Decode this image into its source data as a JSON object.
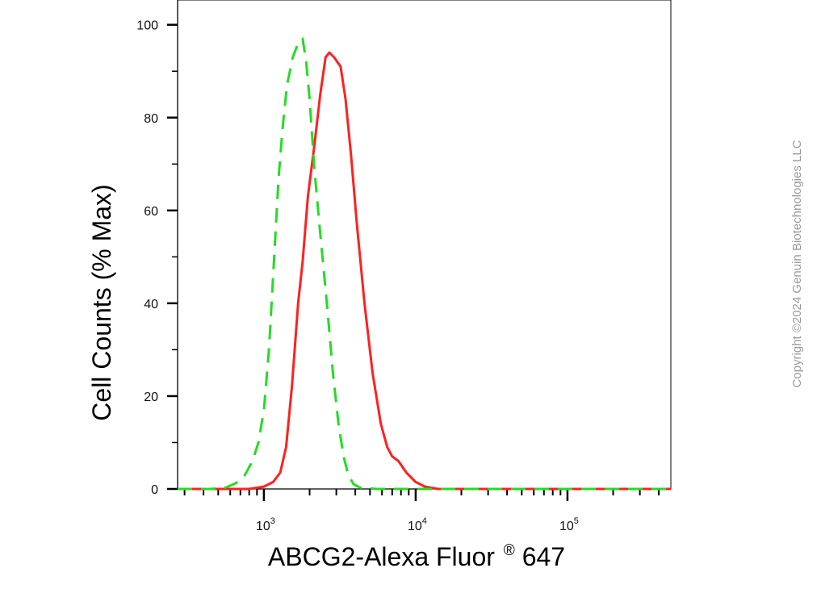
{
  "chart_data": {
    "type": "line",
    "title": "",
    "xlabel": "ABCG2-Alexa Fluor",
    "xlabel_superscript": "®",
    "xlabel_suffix": " 647",
    "ylabel": "Cell Counts (% Max)",
    "x_scale": "log",
    "xlim": [
      270,
      480000
    ],
    "ylim": [
      0,
      105
    ],
    "yticks": [
      0,
      20,
      40,
      60,
      80,
      100
    ],
    "xticks": [
      {
        "value": 1000,
        "base": "10",
        "exp": "3"
      },
      {
        "value": 10000,
        "base": "10",
        "exp": "4"
      },
      {
        "value": 100000,
        "base": "10",
        "exp": "5"
      }
    ],
    "grid": false,
    "legend": "none",
    "series": [
      {
        "color": "#ff2020",
        "style": "solid",
        "points": [
          [
            270,
            0
          ],
          [
            800,
            0
          ],
          [
            1000,
            0.5
          ],
          [
            1150,
            1.5
          ],
          [
            1280,
            3.5
          ],
          [
            1400,
            9
          ],
          [
            1530,
            22
          ],
          [
            1680,
            40
          ],
          [
            1800,
            49
          ],
          [
            1950,
            63
          ],
          [
            2150,
            74
          ],
          [
            2350,
            85
          ],
          [
            2550,
            93
          ],
          [
            2700,
            94
          ],
          [
            2900,
            93
          ],
          [
            3200,
            91
          ],
          [
            3450,
            84
          ],
          [
            3750,
            72
          ],
          [
            4100,
            57
          ],
          [
            4600,
            40
          ],
          [
            5200,
            25
          ],
          [
            5900,
            14
          ],
          [
            6500,
            9
          ],
          [
            7000,
            7
          ],
          [
            7700,
            6
          ],
          [
            8700,
            3.5
          ],
          [
            10000,
            1.5
          ],
          [
            11500,
            0.5
          ],
          [
            14000,
            0
          ],
          [
            480000,
            0
          ]
        ]
      },
      {
        "color": "#22dd22",
        "style": "dashed",
        "points": [
          [
            270,
            0
          ],
          [
            450,
            0
          ],
          [
            560,
            0.3
          ],
          [
            650,
            1.2
          ],
          [
            750,
            3
          ],
          [
            840,
            6
          ],
          [
            920,
            10
          ],
          [
            1000,
            17
          ],
          [
            1080,
            30
          ],
          [
            1160,
            48
          ],
          [
            1250,
            67
          ],
          [
            1330,
            78
          ],
          [
            1420,
            87
          ],
          [
            1550,
            93
          ],
          [
            1680,
            96
          ],
          [
            1800,
            97
          ],
          [
            1900,
            92
          ],
          [
            2000,
            84
          ],
          [
            2150,
            69
          ],
          [
            2350,
            55
          ],
          [
            2600,
            40
          ],
          [
            2850,
            25
          ],
          [
            3100,
            14
          ],
          [
            3350,
            7
          ],
          [
            3600,
            3
          ],
          [
            3900,
            1
          ],
          [
            4300,
            0.3
          ],
          [
            5500,
            0
          ],
          [
            480000,
            0
          ]
        ]
      }
    ]
  },
  "watermark": "Copyright ©2024 Genuin Biotechnologies LLC"
}
